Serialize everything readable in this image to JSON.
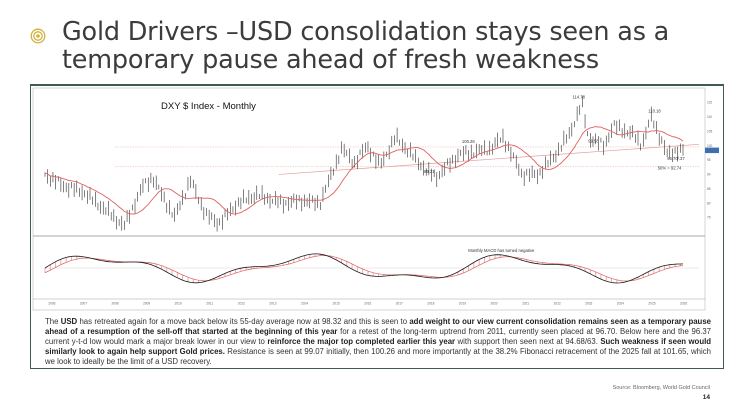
{
  "slide": {
    "title": "Gold Drivers –USD consolidation stays seen as a temporary pause ahead of fresh weakness",
    "source": "Source: Bloomberg, World Gold Council",
    "page_number": "14"
  },
  "caption": {
    "p1": "The ",
    "b1": "USD",
    "p2": " has retreated again for a move back below its 55-day average now at 98.32 and this is seen to ",
    "b2": "add weight to our view current consolidation remains seen as a temporary pause ahead of a resumption of the sell-off that started at the beginning of this year",
    "p3": " for a retest of the long-term uptrend from 2011, currently seen placed at 96.70. Below here and the 96.37 current y-t-d low would mark a major break lower in our view to ",
    "b3": "reinforce the major top completed earlier this year",
    "p4": " with support then seen next at 94.68/63. ",
    "b4": "Such weakness if seen would similarly look to again help support Gold prices.",
    "p5": " Resistance is seen at 99.07 initially, then 100.26 and more importantly at the 38.2% Fibonacci retracement of the 2025 fall at 101.65, which we look to ideally be the limit of a USD recovery."
  },
  "chart_data": {
    "type": "line",
    "title": "DXY $ Index - Monthly",
    "annotations": [
      "114.78",
      "110.18",
      "99.58",
      "100.26",
      "96.70/.37",
      "50% = 92.74",
      "89.21",
      "Monthly MACD has turned negative"
    ],
    "x_tick_labels": [
      "2006",
      "2007",
      "2008",
      "2009",
      "2010",
      "2011",
      "2012",
      "2013",
      "2014",
      "2015",
      "2016",
      "2017",
      "2018",
      "2019",
      "2020",
      "2021",
      "2022",
      "2023",
      "2024",
      "2025",
      "2026"
    ],
    "y_tick_labels": [
      "115",
      "110",
      "105",
      "100",
      "95",
      "90",
      "85",
      "80",
      "75"
    ],
    "price_label": "98.32",
    "colors": {
      "price": "#1a1a1a",
      "average": "#e06060",
      "frame": "#3e5c50",
      "bullet": "#c9a227"
    }
  }
}
